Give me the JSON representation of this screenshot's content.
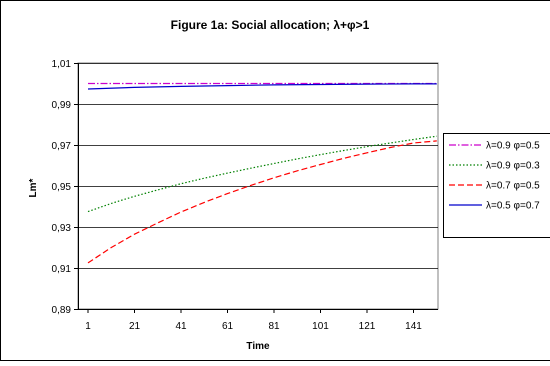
{
  "chart_data": {
    "type": "line",
    "title": "Figure 1a: Social allocation; λ+φ>1",
    "xlabel": "Time",
    "ylabel": "Lm*",
    "x_ticks": [
      "1",
      "21",
      "41",
      "61",
      "81",
      "101",
      "121",
      "141"
    ],
    "y_ticks": [
      "0,89",
      "0,91",
      "0,93",
      "0,95",
      "0,97",
      "0,99",
      "1,01"
    ],
    "xlim": [
      1,
      151
    ],
    "ylim": [
      0.89,
      1.01
    ],
    "grid": "horizontal",
    "plot_background": "#ffffff",
    "legend_placement": "right",
    "series": [
      {
        "name": "λ=0.9 φ=0.5",
        "color": "#cc00cc",
        "dash": "dash-dot",
        "x": [
          1,
          21,
          41,
          61,
          81,
          101,
          121,
          141,
          151
        ],
        "y": [
          1.0,
          1.0,
          1.0,
          1.0,
          1.0,
          1.0,
          1.0,
          1.0,
          1.0
        ]
      },
      {
        "name": "λ=0.9 φ=0.3",
        "color": "#008000",
        "dash": "dotted",
        "x": [
          1,
          11,
          21,
          31,
          41,
          51,
          61,
          71,
          81,
          91,
          101,
          111,
          121,
          131,
          141,
          151
        ],
        "y": [
          0.9375,
          0.9415,
          0.945,
          0.9481,
          0.9511,
          0.9538,
          0.9563,
          0.9587,
          0.961,
          0.9632,
          0.9653,
          0.9673,
          0.9692,
          0.971,
          0.9727,
          0.9743
        ]
      },
      {
        "name": "λ=0.7 φ=0.5",
        "color": "#ff0000",
        "dash": "dashed",
        "x": [
          1,
          11,
          21,
          31,
          41,
          51,
          61,
          71,
          81,
          91,
          101,
          111,
          121,
          131,
          141,
          151
        ],
        "y": [
          0.9125,
          0.92,
          0.9265,
          0.932,
          0.9373,
          0.942,
          0.9463,
          0.9503,
          0.954,
          0.9574,
          0.9605,
          0.9635,
          0.9662,
          0.9688,
          0.971,
          0.972
        ]
      },
      {
        "name": "λ=0.5 φ=0.7",
        "color": "#0000cc",
        "dash": "solid",
        "x": [
          1,
          21,
          41,
          61,
          81,
          101,
          121,
          141,
          151
        ],
        "y": [
          0.9973,
          0.9981,
          0.9986,
          0.999,
          0.9993,
          0.9995,
          0.9997,
          0.9998,
          0.9998
        ]
      }
    ]
  }
}
